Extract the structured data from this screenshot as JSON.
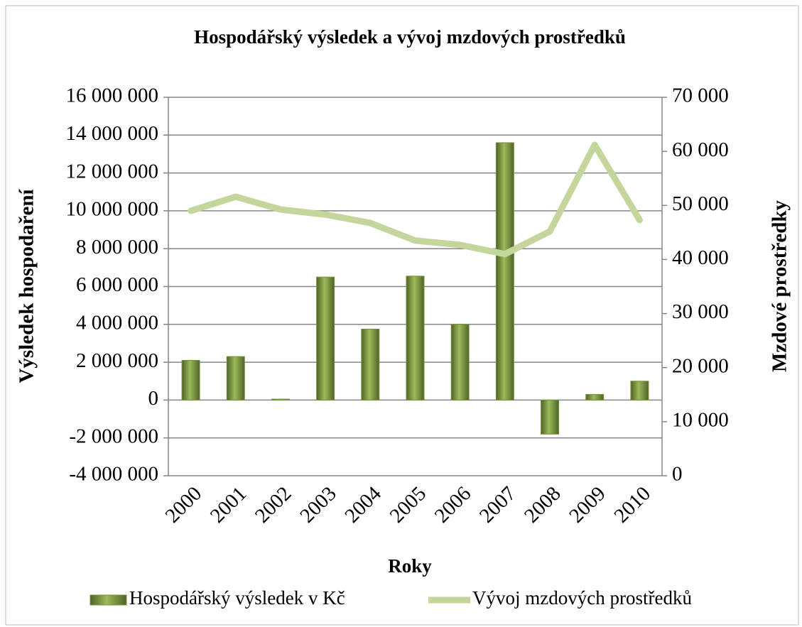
{
  "chart_data": {
    "type": "bar",
    "title": "Hospodářský výsledek a vývoj mzdových prostředků",
    "x_label": "Roky",
    "y_label": "Výsledek hospodaření",
    "y2_label": "Mzdové prostředky",
    "categories": [
      "2000",
      "2001",
      "2002",
      "2003",
      "2004",
      "2005",
      "2006",
      "2007",
      "2008",
      "2009",
      "2010"
    ],
    "series": [
      {
        "name": "Hospodářský výsledek v Kč",
        "type": "bar",
        "color": "#77933c",
        "values": [
          2100000,
          2300000,
          50000,
          6500000,
          3750000,
          6550000,
          4000000,
          13600000,
          -1800000,
          300000,
          1000000
        ]
      },
      {
        "name": "Vývoj mzdových prostředků",
        "type": "line",
        "axis": "y2",
        "color": "#c3d69b",
        "values": [
          49000,
          51600,
          49250,
          48300,
          46750,
          43500,
          42700,
          41000,
          45200,
          61200,
          47300
        ]
      }
    ],
    "ylim": [
      -4000000,
      16000000
    ],
    "yticks": [
      {
        "value": -4000000,
        "label": "-4 000 000"
      },
      {
        "value": -2000000,
        "label": "-2 000 000"
      },
      0,
      {
        "value": 2000000,
        "label": "2 000 000"
      },
      {
        "value": 4000000,
        "label": "4 000 000"
      },
      {
        "value": 6000000,
        "label": "6 000 000"
      },
      {
        "value": 8000000,
        "label": "8 000 000"
      },
      {
        "value": 10000000,
        "label": "10 000 000"
      },
      {
        "value": 12000000,
        "label": "12 000 000"
      },
      {
        "value": 14000000,
        "label": "14 000 000"
      },
      {
        "value": 16000000,
        "label": "16 000 000"
      }
    ],
    "y2lim": [
      0,
      70000
    ],
    "y2ticks": [
      0,
      {
        "value": 10000,
        "label": "10 000"
      },
      {
        "value": 20000,
        "label": "20 000"
      },
      {
        "value": 30000,
        "label": "30 000"
      },
      {
        "value": 40000,
        "label": "40 000"
      },
      {
        "value": 50000,
        "label": "50 000"
      },
      {
        "value": 60000,
        "label": "60 000"
      },
      {
        "value": 70000,
        "label": "70 000"
      }
    ],
    "grid": true,
    "legend": "bottom"
  }
}
